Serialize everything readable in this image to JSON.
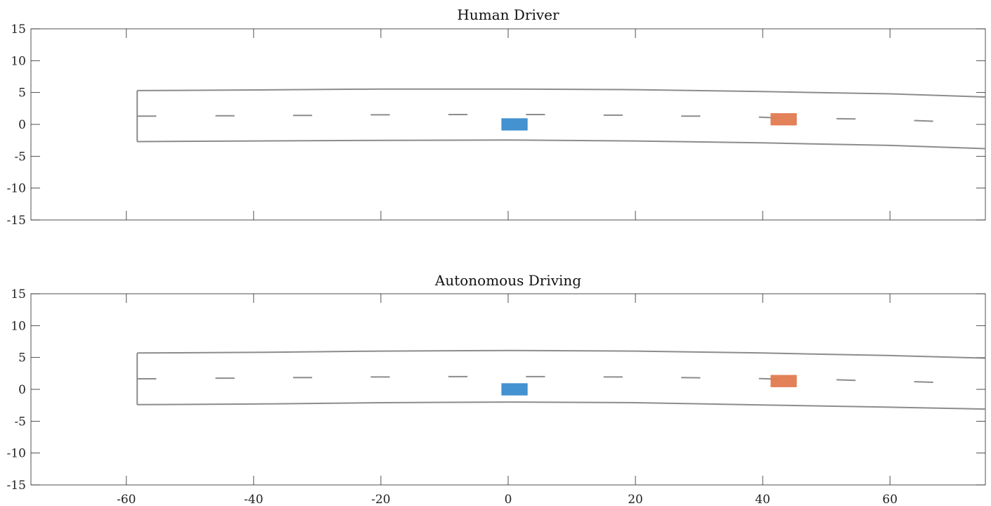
{
  "chart_data": [
    {
      "type": "diagram",
      "title": "Human Driver",
      "xlim": [
        -75,
        75
      ],
      "ylim": [
        -15,
        15
      ],
      "xticks": [
        -60,
        -40,
        -20,
        0,
        20,
        40,
        60
      ],
      "xtick_labels": [],
      "yticks": [
        15,
        10,
        5,
        0,
        -5,
        -10,
        -15
      ],
      "ytick_labels": [
        "15",
        "10",
        "5",
        "0",
        "-5",
        "-10",
        "-15"
      ],
      "road": {
        "start_x": -58.3,
        "left_edge": [
          [
            -58.3,
            5.3
          ],
          [
            -40,
            5.4
          ],
          [
            -20,
            5.55
          ],
          [
            0,
            5.55
          ],
          [
            20,
            5.45
          ],
          [
            40,
            5.15
          ],
          [
            60,
            4.8
          ],
          [
            75,
            4.3
          ]
        ],
        "right_edge": [
          [
            -58.3,
            -2.7
          ],
          [
            -40,
            -2.6
          ],
          [
            -20,
            -2.5
          ],
          [
            0,
            -2.45
          ],
          [
            20,
            -2.6
          ],
          [
            40,
            -2.9
          ],
          [
            60,
            -3.3
          ],
          [
            75,
            -3.8
          ]
        ],
        "center_dashes": [
          [
            [
              -58.3,
              1.3
            ],
            [
              -55.3,
              1.3
            ]
          ],
          [
            [
              -46,
              1.35
            ],
            [
              -43,
              1.35
            ]
          ],
          [
            [
              -33.8,
              1.4
            ],
            [
              -30.8,
              1.4
            ]
          ],
          [
            [
              -21.6,
              1.5
            ],
            [
              -18.6,
              1.5
            ]
          ],
          [
            [
              -9.4,
              1.55
            ],
            [
              -6.4,
              1.55
            ]
          ],
          [
            [
              2.8,
              1.55
            ],
            [
              5.8,
              1.55
            ]
          ],
          [
            [
              15,
              1.45
            ],
            [
              18,
              1.45
            ]
          ],
          [
            [
              27.2,
              1.3
            ],
            [
              30.2,
              1.3
            ]
          ],
          [
            [
              39.4,
              1.15
            ],
            [
              42.4,
              1.0
            ]
          ],
          [
            [
              51.6,
              0.9
            ],
            [
              54.6,
              0.85
            ]
          ],
          [
            [
              63.8,
              0.6
            ],
            [
              66.8,
              0.5
            ]
          ]
        ]
      },
      "vehicles": [
        {
          "name": "ego",
          "color": "#3b8ccd",
          "x": [
            -1,
            3
          ],
          "y": [
            -0.9,
            0.9
          ]
        },
        {
          "name": "other",
          "color": "#e27a50",
          "x": [
            41.3,
            45.3
          ],
          "y": [
            -0.1,
            1.7
          ]
        }
      ]
    },
    {
      "type": "diagram",
      "title": "Autonomous Driving",
      "xlim": [
        -75,
        75
      ],
      "ylim": [
        -15,
        15
      ],
      "xticks": [
        -60,
        -40,
        -20,
        0,
        20,
        40,
        60
      ],
      "xtick_labels": [
        "-60",
        "-40",
        "-20",
        "0",
        "20",
        "40",
        "60"
      ],
      "yticks": [
        15,
        10,
        5,
        0,
        -5,
        -10,
        -15
      ],
      "ytick_labels": [
        "15",
        "10",
        "5",
        "0",
        "-5",
        "-10",
        "-15"
      ],
      "road": {
        "start_x": -58.3,
        "left_edge": [
          [
            -58.3,
            5.7
          ],
          [
            -40,
            5.8
          ],
          [
            -20,
            6.0
          ],
          [
            0,
            6.1
          ],
          [
            20,
            6.0
          ],
          [
            40,
            5.7
          ],
          [
            60,
            5.3
          ],
          [
            75,
            4.9
          ]
        ],
        "right_edge": [
          [
            -58.3,
            -2.4
          ],
          [
            -40,
            -2.3
          ],
          [
            -20,
            -2.1
          ],
          [
            0,
            -2.0
          ],
          [
            20,
            -2.1
          ],
          [
            40,
            -2.45
          ],
          [
            60,
            -2.8
          ],
          [
            75,
            -3.1
          ]
        ],
        "center_dashes": [
          [
            [
              -58.3,
              1.65
            ],
            [
              -55.3,
              1.65
            ]
          ],
          [
            [
              -46,
              1.75
            ],
            [
              -43,
              1.75
            ]
          ],
          [
            [
              -33.8,
              1.85
            ],
            [
              -30.8,
              1.85
            ]
          ],
          [
            [
              -21.6,
              1.95
            ],
            [
              -18.6,
              1.95
            ]
          ],
          [
            [
              -9.4,
              2.0
            ],
            [
              -6.4,
              2.0
            ]
          ],
          [
            [
              2.8,
              2.0
            ],
            [
              5.8,
              2.0
            ]
          ],
          [
            [
              15,
              1.95
            ],
            [
              18,
              1.95
            ]
          ],
          [
            [
              27.2,
              1.85
            ],
            [
              30.2,
              1.8
            ]
          ],
          [
            [
              39.4,
              1.7
            ],
            [
              42.4,
              1.6
            ]
          ],
          [
            [
              51.6,
              1.5
            ],
            [
              54.6,
              1.4
            ]
          ],
          [
            [
              63.8,
              1.2
            ],
            [
              66.8,
              1.1
            ]
          ]
        ]
      },
      "vehicles": [
        {
          "name": "ego",
          "color": "#3b8ccd",
          "x": [
            -1,
            3
          ],
          "y": [
            -0.9,
            0.9
          ]
        },
        {
          "name": "other",
          "color": "#e27a50",
          "x": [
            41.3,
            45.3
          ],
          "y": [
            0.4,
            2.2
          ]
        }
      ]
    }
  ]
}
